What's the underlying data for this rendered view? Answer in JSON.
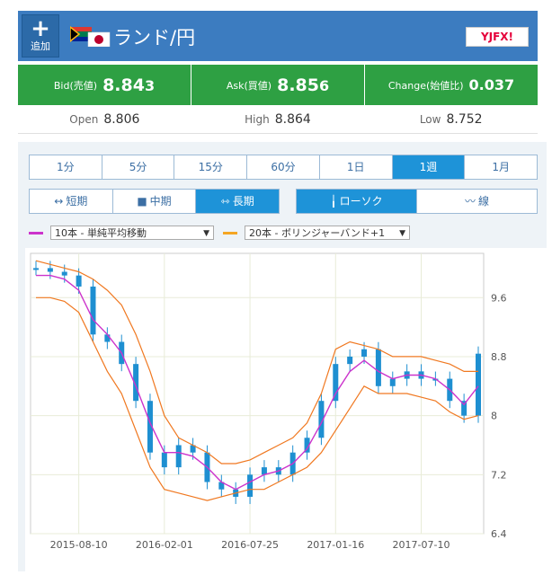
{
  "header": {
    "add_label": "追加",
    "add_icon": "plus-icon",
    "pair_title": "ランド/円",
    "logo_text": "YJFX!",
    "flag_icons": [
      "south-africa-flag-icon",
      "japan-flag-icon"
    ]
  },
  "quotes": {
    "bid": {
      "label": "Bid(売値)",
      "value_main": "8.84",
      "value_small": "3"
    },
    "ask": {
      "label": "Ask(買値)",
      "value_main": "8.85",
      "value_small": "6"
    },
    "change": {
      "label": "Change(始値比)",
      "value": "0.037"
    }
  },
  "stats": {
    "open": {
      "label": "Open",
      "value": "8.806"
    },
    "high": {
      "label": "High",
      "value": "8.864"
    },
    "low": {
      "label": "Low",
      "value": "8.752"
    }
  },
  "timeframes": [
    {
      "label": "1分",
      "active": false
    },
    {
      "label": "5分",
      "active": false
    },
    {
      "label": "15分",
      "active": false
    },
    {
      "label": "60分",
      "active": false
    },
    {
      "label": "1日",
      "active": false
    },
    {
      "label": "1週",
      "active": true
    },
    {
      "label": "1月",
      "active": false
    }
  ],
  "range_buttons": [
    {
      "label": "短期",
      "icon": "short-range-icon",
      "active": false
    },
    {
      "label": "中期",
      "icon": "mid-range-icon",
      "active": false
    },
    {
      "label": "長期",
      "icon": "long-range-icon",
      "active": true
    }
  ],
  "chart_type_buttons": [
    {
      "label": "ローソク",
      "icon": "candlestick-icon",
      "active": true
    },
    {
      "label": "線",
      "icon": "line-chart-icon",
      "active": false
    }
  ],
  "indicators": {
    "ma": {
      "selected": "10本 - 単純平均移動",
      "color": "#cc33cc"
    },
    "bb": {
      "selected": "20本 - ボリンジャーバンド+1",
      "color": "#f5a623"
    }
  },
  "colors": {
    "header_bg": "#3c7cc0",
    "quote_bg": "#2ea043",
    "active_tab": "#1e93d8",
    "candle_up": "#1e8fd1",
    "ma_line": "#cc33cc",
    "bb_line": "#f07820"
  },
  "chart_data": {
    "type": "line",
    "title": "",
    "xlabel": "",
    "ylabel": "",
    "x_tick_labels": [
      "2015-08-10",
      "2016-02-01",
      "2016-07-25",
      "2017-01-16",
      "2017-07-10"
    ],
    "y_tick_labels": [
      "9.6",
      "8.8",
      "8",
      "7.2",
      "6.4"
    ],
    "ylim": [
      6.4,
      10.2
    ],
    "grid": true,
    "x": [
      "2015-05",
      "2015-06",
      "2015-07",
      "2015-08",
      "2015-09",
      "2015-10",
      "2015-11",
      "2015-12",
      "2016-01",
      "2016-02",
      "2016-03",
      "2016-04",
      "2016-05",
      "2016-06",
      "2016-07",
      "2016-08",
      "2016-09",
      "2016-10",
      "2016-11",
      "2016-12",
      "2017-01",
      "2017-02",
      "2017-03",
      "2017-04",
      "2017-05",
      "2017-06",
      "2017-07",
      "2017-08",
      "2017-09",
      "2017-10",
      "2017-11",
      "2017-12"
    ],
    "series": [
      {
        "name": "",
        "values": [
          10.0,
          9.95,
          9.9,
          9.75,
          9.1,
          9.0,
          8.7,
          8.2,
          7.5,
          7.3,
          7.6,
          7.5,
          7.1,
          7.0,
          6.9,
          7.2,
          7.3,
          7.2,
          7.5,
          7.7,
          8.2,
          8.7,
          8.8,
          8.9,
          8.4,
          8.5,
          8.6,
          8.5,
          8.5,
          8.2,
          8.0,
          8.84
        ]
      },
      {
        "name": "",
        "values": [
          9.9,
          9.9,
          9.85,
          9.7,
          9.3,
          9.1,
          8.85,
          8.4,
          7.9,
          7.5,
          7.5,
          7.45,
          7.3,
          7.1,
          7.0,
          7.1,
          7.2,
          7.25,
          7.35,
          7.55,
          7.9,
          8.3,
          8.6,
          8.75,
          8.6,
          8.5,
          8.55,
          8.55,
          8.5,
          8.35,
          8.15,
          8.4
        ]
      },
      {
        "name": "",
        "values": [
          10.1,
          10.05,
          10.0,
          9.95,
          9.85,
          9.7,
          9.5,
          9.1,
          8.6,
          8.0,
          7.7,
          7.6,
          7.5,
          7.35,
          7.35,
          7.4,
          7.5,
          7.6,
          7.7,
          7.9,
          8.3,
          8.9,
          9.0,
          8.95,
          8.9,
          8.8,
          8.8,
          8.8,
          8.75,
          8.7,
          8.6,
          8.6
        ]
      },
      {
        "name": "",
        "values": [
          9.6,
          9.6,
          9.55,
          9.4,
          9.0,
          8.6,
          8.3,
          7.8,
          7.3,
          7.0,
          6.95,
          6.9,
          6.85,
          6.9,
          6.95,
          7.0,
          7.0,
          7.1,
          7.2,
          7.3,
          7.5,
          7.8,
          8.1,
          8.4,
          8.3,
          8.3,
          8.3,
          8.25,
          8.2,
          8.05,
          7.95,
          8.0
        ]
      }
    ]
  }
}
